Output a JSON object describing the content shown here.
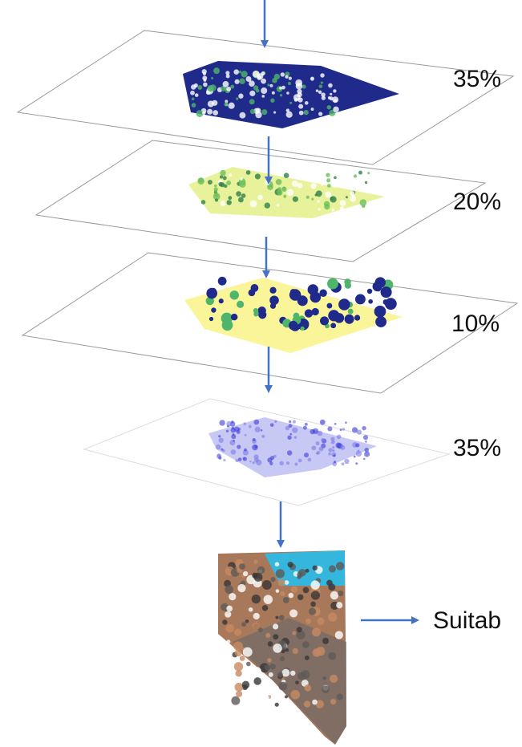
{
  "layers": [
    {
      "weight": "35%"
    },
    {
      "weight": "20%"
    },
    {
      "weight": "10%"
    },
    {
      "weight": "35%"
    }
  ],
  "output": {
    "label": "Suitab"
  }
}
